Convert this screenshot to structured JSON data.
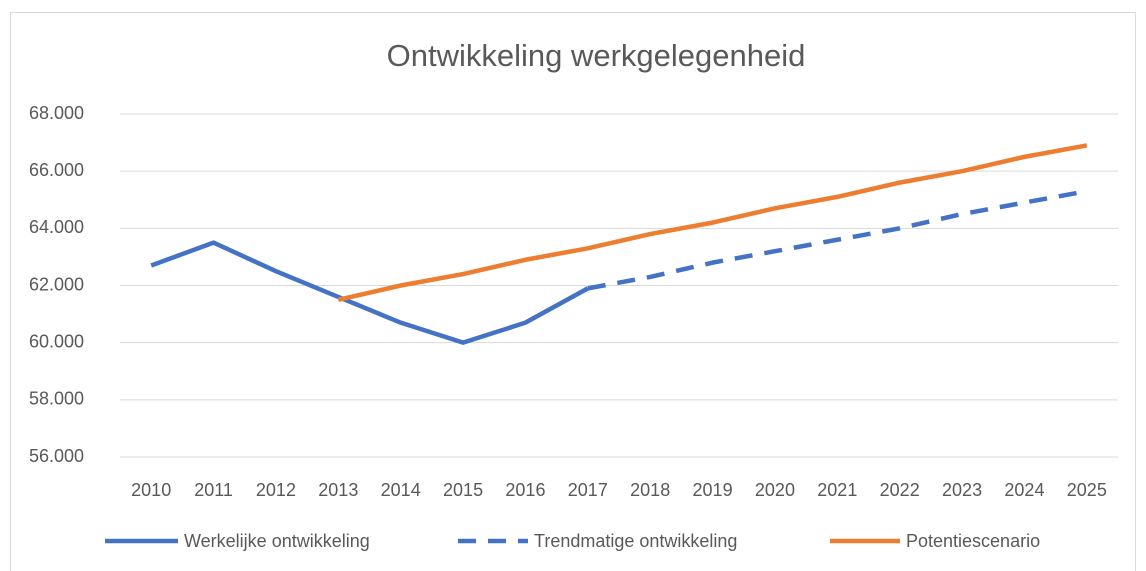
{
  "chart_data": {
    "type": "line",
    "title": "Ontwikkeling werkgelegenheid",
    "categories": [
      "2010",
      "2011",
      "2012",
      "2013",
      "2014",
      "2015",
      "2016",
      "2017",
      "2018",
      "2019",
      "2020",
      "2021",
      "2022",
      "2023",
      "2024",
      "2025"
    ],
    "series": [
      {
        "name": "Werkelijke ontwikkeling",
        "color": "#4472c4",
        "line_style": "solid",
        "values": [
          62700,
          63500,
          62500,
          61600,
          60700,
          60000,
          60700,
          61900,
          null,
          null,
          null,
          null,
          null,
          null,
          null,
          null
        ]
      },
      {
        "name": "Trendmatige ontwikkeling",
        "color": "#4472c4",
        "line_style": "dashed",
        "values": [
          null,
          null,
          null,
          null,
          null,
          null,
          null,
          61900,
          62300,
          62800,
          63200,
          63600,
          64000,
          64500,
          64900,
          65300
        ]
      },
      {
        "name": "Potentiescenario",
        "color": "#ed7d31",
        "line_style": "solid",
        "values": [
          null,
          null,
          null,
          61500,
          62000,
          62400,
          62900,
          63300,
          63800,
          64200,
          64700,
          65100,
          65600,
          66000,
          66500,
          66900
        ]
      }
    ],
    "ylim": [
      56000,
      68000
    ],
    "yticks": [
      {
        "value": 56000,
        "label": "56.000"
      },
      {
        "value": 58000,
        "label": "58.000"
      },
      {
        "value": 60000,
        "label": "60.000"
      },
      {
        "value": 62000,
        "label": "62.000"
      },
      {
        "value": 64000,
        "label": "64.000"
      },
      {
        "value": 66000,
        "label": "66.000"
      },
      {
        "value": 68000,
        "label": "68.000"
      }
    ],
    "grid": true,
    "legend": "bottom"
  }
}
